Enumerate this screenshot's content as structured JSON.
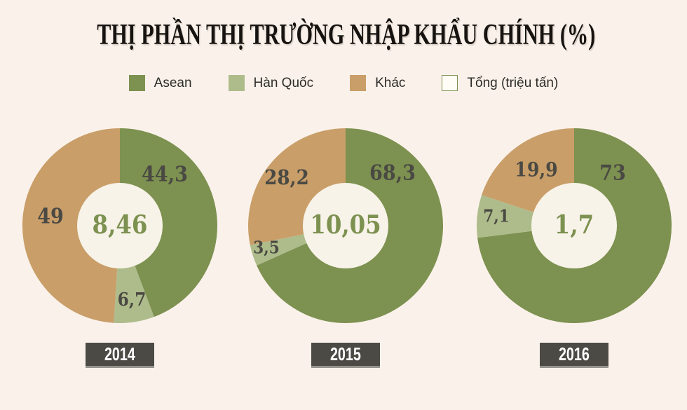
{
  "chart_data": {
    "type": "donut",
    "title": "THỊ PHẦN THỊ TRƯỜNG NHẬP KHẨU CHÍNH (%)",
    "legend_position": "top",
    "colors": {
      "asean": "#7d9150",
      "han_quoc": "#aebc8b",
      "khac": "#c99e69",
      "total_swatch_fill": "#fffdf6",
      "total_swatch_border": "#7d9150",
      "background": "#faf2ea",
      "hole": "#f7f3e8",
      "slice_label_text": "#4a4943",
      "center_label_text": "#7d9150",
      "year_badge_bg": "#4c4a45",
      "year_badge_text": "#ffffff"
    },
    "legend": [
      {
        "key": "asean",
        "label": "Asean",
        "color": "#7d9150"
      },
      {
        "key": "han_quoc",
        "label": "Hàn Quốc",
        "color": "#aebc8b"
      },
      {
        "key": "khac",
        "label": "Khác",
        "color": "#c99e69"
      },
      {
        "key": "tong",
        "label": "Tổng (triệu tấn)",
        "color": "#fffdf6"
      }
    ],
    "charts": [
      {
        "year": "2014",
        "total_display": "8,46",
        "slices": [
          {
            "name": "Asean",
            "value": 44.3,
            "display": "44,3"
          },
          {
            "name": "Hàn Quốc",
            "value": 6.7,
            "display": "6,7"
          },
          {
            "name": "Khác",
            "value": 49,
            "display": "49"
          }
        ]
      },
      {
        "year": "2015",
        "total_display": "10,05",
        "slices": [
          {
            "name": "Asean",
            "value": 68.3,
            "display": "68,3"
          },
          {
            "name": "Hàn Quốc",
            "value": 3.5,
            "display": "3,5"
          },
          {
            "name": "Khác",
            "value": 28.2,
            "display": "28,2"
          }
        ]
      },
      {
        "year": "2016",
        "total_display": "1,7",
        "slices": [
          {
            "name": "Asean",
            "value": 73,
            "display": "73"
          },
          {
            "name": "Hàn Quốc",
            "value": 7.1,
            "display": "7,1"
          },
          {
            "name": "Khác",
            "value": 19.9,
            "display": "19,9"
          }
        ]
      }
    ]
  }
}
